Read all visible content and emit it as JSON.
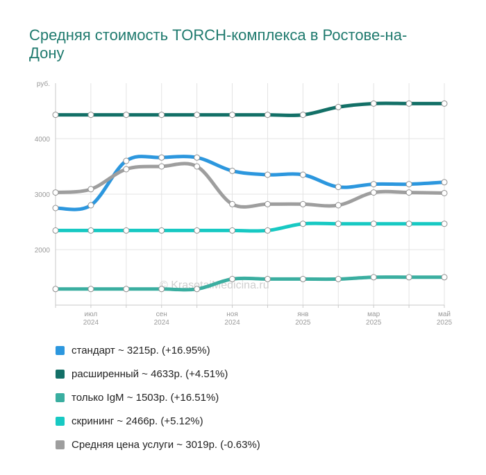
{
  "title": "Средняя стоимость TORCH-комплекса в Ростове-на-Дону",
  "watermark": "© KrasotaiMedicina.ru",
  "chart_data": {
    "type": "line",
    "ylabel": "руб.",
    "yticks": [
      2000,
      3000,
      4000
    ],
    "ylim": [
      1000,
      5000
    ],
    "x": [
      "2024-06",
      "2024-07",
      "2024-08",
      "2024-09",
      "2024-10",
      "2024-11",
      "2024-12",
      "2025-01",
      "2025-02",
      "2025-03",
      "2025-04",
      "2025-05"
    ],
    "x_tick_labels": [
      {
        "idx": 1,
        "month": "июл",
        "year": "2024"
      },
      {
        "idx": 3,
        "month": "сен",
        "year": "2024"
      },
      {
        "idx": 5,
        "month": "ноя",
        "year": "2024"
      },
      {
        "idx": 7,
        "month": "янв",
        "year": "2025"
      },
      {
        "idx": 9,
        "month": "мар",
        "year": "2025"
      },
      {
        "idx": 11,
        "month": "май",
        "year": "2025"
      }
    ],
    "series": [
      {
        "name": "расширенный",
        "color": "#137067",
        "values": [
          4430,
          4430,
          4430,
          4430,
          4430,
          4430,
          4430,
          4430,
          4570,
          4633,
          4633,
          4633
        ]
      },
      {
        "name": "стандарт",
        "color": "#2c97de",
        "values": [
          2750,
          2800,
          3600,
          3660,
          3660,
          3420,
          3350,
          3350,
          3130,
          3180,
          3180,
          3215
        ]
      },
      {
        "name": "Средняя цена услуги",
        "color": "#9e9e9e",
        "values": [
          3030,
          3090,
          3450,
          3500,
          3500,
          2820,
          2820,
          2820,
          2800,
          3030,
          3030,
          3019
        ]
      },
      {
        "name": "скрининг",
        "color": "#17c9c3",
        "values": [
          2345,
          2345,
          2345,
          2345,
          2345,
          2345,
          2345,
          2466,
          2466,
          2466,
          2466,
          2466
        ]
      },
      {
        "name": "только IgM",
        "color": "#3aaea0",
        "values": [
          1290,
          1290,
          1290,
          1290,
          1290,
          1470,
          1470,
          1470,
          1470,
          1503,
          1503,
          1503
        ]
      }
    ],
    "grid": true,
    "legend_position": "bottom"
  },
  "legend": [
    {
      "label": "стандарт ~ 3215р. (+16.95%)",
      "color": "#2c97de"
    },
    {
      "label": "расширенный ~ 4633р. (+4.51%)",
      "color": "#137067"
    },
    {
      "label": "только IgM ~ 1503р. (+16.51%)",
      "color": "#3aaea0"
    },
    {
      "label": "скрининг ~ 2466р. (+5.12%)",
      "color": "#17c9c3"
    },
    {
      "label": "Средняя цена услуги ~ 3019р. (-0.63%)",
      "color": "#9e9e9e"
    }
  ]
}
